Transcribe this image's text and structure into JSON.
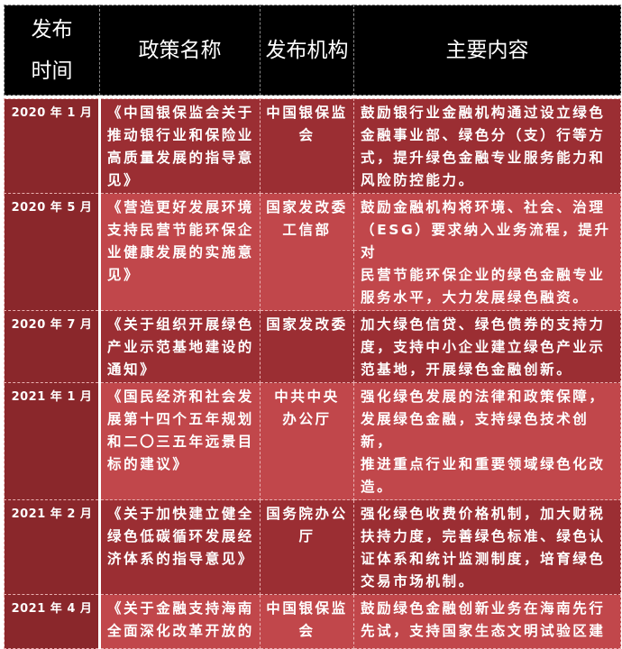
{
  "header": {
    "date": "发布\n时间",
    "name": "政策名称",
    "org": "发布机构",
    "content": "主要内容"
  },
  "colors": {
    "header_bg": "#000000",
    "date_col": "#8a272b",
    "row_dark": "#9b2e33",
    "row_light": "#c1474b"
  },
  "rows": [
    {
      "date": "2020 年 1 月",
      "name": "《中国银保监会关于\n推动银行业和保险业\n高质量发展的指导意\n见》",
      "org": "中国银保监会",
      "content": "鼓励银行业金融机构通过设立绿色\n金融事业部、绿色分（支）行等方\n式，提升绿色金融专业服务能力和\n风险防控能力。"
    },
    {
      "date": "2020 年 5 月",
      "name": "《营造更好发展环境\n支持民营节能环保企\n业健康发展的实施意\n见》",
      "org": "国家发改委\n工信部",
      "content": "鼓励金融机构将环境、社会、治理\n（ESG）要求纳入业务流程，提升对\n民营节能环保企业的绿色金融专业\n服务水平，大力发展绿色融资。"
    },
    {
      "date": "2020 年 7 月",
      "name": "《关于组织开展绿色\n产业示范基地建设的\n通知》",
      "org": "国家发改委",
      "content": "加大绿色信贷、绿色债券的支持力\n度，支持中小企业建立绿色产业示\n范基地，开展绿色金融创新。"
    },
    {
      "date": "2021 年 1 月",
      "name": "《国民经济和社会发\n展第十四个五年规划\n和二〇三五年远景目\n标的建议》",
      "org": "中共中央\n办公厅",
      "content": "强化绿色发展的法律和政策保障，\n发展绿色金融，支持绿色技术创新，\n推进重点行业和重要领域绿色化改\n造。"
    },
    {
      "date": "2021 年 2 月",
      "name": "《关于加快建立健全\n绿色低碳循环发展经\n济体系的指导意见》",
      "org": "国务院办公厅",
      "content": "强化绿色收费价格机制，加大财税\n扶持力度，完善绿色标准、绿色认\n证体系和统计监测制度，培育绿色\n交易市场机制。"
    },
    {
      "date": "2021 年 4 月",
      "name": "《关于金融支持海南\n全面深化改革开放的",
      "org": "中国银保监会",
      "content": "鼓励绿色金融创新业务在海南先行\n先试，支持国家生态文明试验区建"
    }
  ]
}
